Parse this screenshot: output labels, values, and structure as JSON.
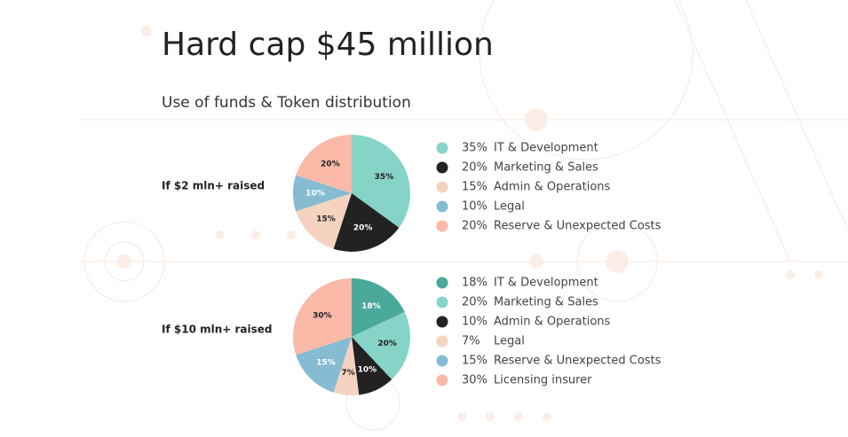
{
  "header": {
    "title": "Hard cap $45 million",
    "subtitle": "Use of funds & Token distribution"
  },
  "chart_data": [
    {
      "type": "pie",
      "title": "If $2 mln+ raised",
      "categories": [
        "IT & Development",
        "Marketing & Sales",
        "Admin & Operations",
        "Legal",
        "Reserve & Unexpected Costs"
      ],
      "values": [
        35,
        20,
        15,
        10,
        20
      ],
      "value_labels": [
        "35%",
        "20%",
        "15%",
        "10%",
        "20%"
      ],
      "colors": [
        "#86d3c7",
        "#222222",
        "#f5d3c0",
        "#86bcd2",
        "#fbb9a8"
      ]
    },
    {
      "type": "pie",
      "title": "If $10 mln+ raised",
      "categories": [
        "IT & Development",
        "Marketing & Sales",
        "Admin & Operations",
        "Legal",
        "Reserve & Unexpected Costs",
        "Licensing insurer"
      ],
      "values": [
        18,
        20,
        10,
        7,
        15,
        30
      ],
      "value_labels": [
        "18%",
        "20%",
        "10%",
        "7%",
        "15%",
        "30%"
      ],
      "colors": [
        "#4aa99a",
        "#86d3c7",
        "#222222",
        "#f5d3c0",
        "#86bcd2",
        "#fbb9a8"
      ]
    }
  ]
}
